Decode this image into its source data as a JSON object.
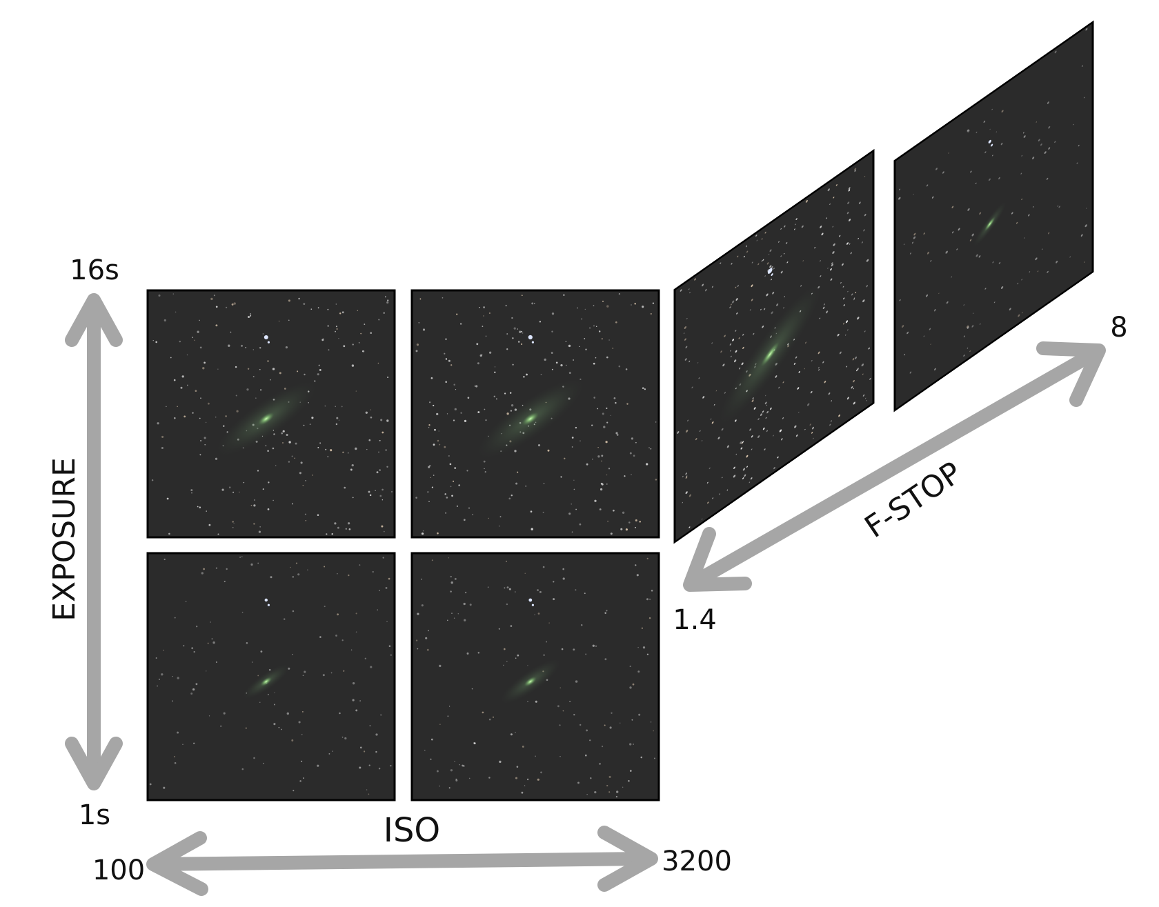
{
  "colors": {
    "background": "#ffffff",
    "arrow": "#a6a6a6",
    "panel_fill": "#2b2b2b",
    "panel_border": "#000000",
    "galaxy": "#b8f0a0",
    "star": "#ffffff",
    "label": "#111111"
  },
  "axes": {
    "exposure": {
      "name": "EXPOSURE",
      "min_label": "1s",
      "max_label": "16s"
    },
    "iso": {
      "name": "ISO",
      "min_label": "100",
      "max_label": "3200"
    },
    "fstop": {
      "name": "F-STOP",
      "min_label": "1.4",
      "max_label": "8"
    }
  },
  "panels": [
    {
      "id": "exp16-iso100",
      "exposure": "16s",
      "iso": "100",
      "brightness": 0.75
    },
    {
      "id": "exp16-iso3200",
      "exposure": "16s",
      "iso": "3200",
      "brightness": 0.8
    },
    {
      "id": "exp1-iso100",
      "exposure": "1s",
      "iso": "100",
      "brightness": 0.35
    },
    {
      "id": "exp1-iso3200",
      "exposure": "1s",
      "iso": "3200",
      "brightness": 0.45
    },
    {
      "id": "fstop-1.4",
      "fstop": "1.4",
      "brightness": 0.95
    },
    {
      "id": "fstop-8",
      "fstop": "8",
      "brightness": 0.3
    }
  ]
}
